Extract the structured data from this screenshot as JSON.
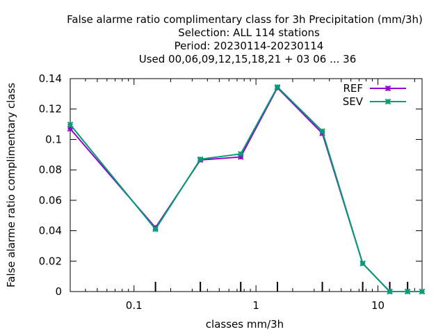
{
  "chart_data": {
    "type": "line",
    "title_lines": [
      "False alarme ratio complimentary class  for 3h Precipitation (mm/3h)",
      "Selection: ALL    114 stations",
      "Period: 20230114-20230114",
      "Used  00,06,09,12,15,18,21  + 03 06 ... 36"
    ],
    "xlabel": "classes mm/3h",
    "ylabel": "False alarme ratio complimentary class",
    "x_scale": "log",
    "xlim": [
      0.03,
      23
    ],
    "ylim": [
      0,
      0.14
    ],
    "x_tick_labels": [
      {
        "value": 0.1,
        "label": "0.1"
      },
      {
        "value": 1,
        "label": "1"
      },
      {
        "value": 10,
        "label": "10"
      }
    ],
    "y_tick_labels": [
      {
        "value": 0,
        "label": "0"
      },
      {
        "value": 0.02,
        "label": "0.02"
      },
      {
        "value": 0.04,
        "label": "0.04"
      },
      {
        "value": 0.06,
        "label": "0.06"
      },
      {
        "value": 0.08,
        "label": "0.08"
      },
      {
        "value": 0.1,
        "label": "0.1"
      },
      {
        "value": 0.12,
        "label": "0.12"
      },
      {
        "value": 0.14,
        "label": "0.14"
      }
    ],
    "x_major_ticks": [
      0.1,
      1,
      10
    ],
    "x_minor_ticks": [
      0.05,
      0.2,
      0.5,
      2,
      5,
      20
    ],
    "x_minor_tick_marks": [
      0.04,
      0.06,
      0.07,
      0.08,
      0.09,
      0.3,
      0.4,
      0.6,
      0.7,
      0.8,
      0.9,
      3,
      4,
      6,
      7,
      8,
      9
    ],
    "x_data_ticks": [
      0.15,
      0.35,
      0.75,
      1.5,
      3.5,
      7.5,
      12.5,
      17.5
    ],
    "legend_position": "top-right",
    "grid": false,
    "x": [
      0.03,
      0.15,
      0.35,
      0.75,
      1.5,
      3.5,
      7.5,
      12.5,
      17.5,
      23
    ],
    "series": [
      {
        "name": "REF",
        "color": "#9400d3",
        "marker": "cross",
        "values": [
          0.107,
          0.042,
          0.0865,
          0.0885,
          0.134,
          0.104,
          0.0185,
          0,
          0,
          0
        ]
      },
      {
        "name": "SEV",
        "color": "#009e73",
        "marker": "cross",
        "values": [
          0.1098,
          0.041,
          0.087,
          0.0905,
          0.1345,
          0.1055,
          0.0185,
          0,
          0,
          0
        ]
      }
    ]
  }
}
